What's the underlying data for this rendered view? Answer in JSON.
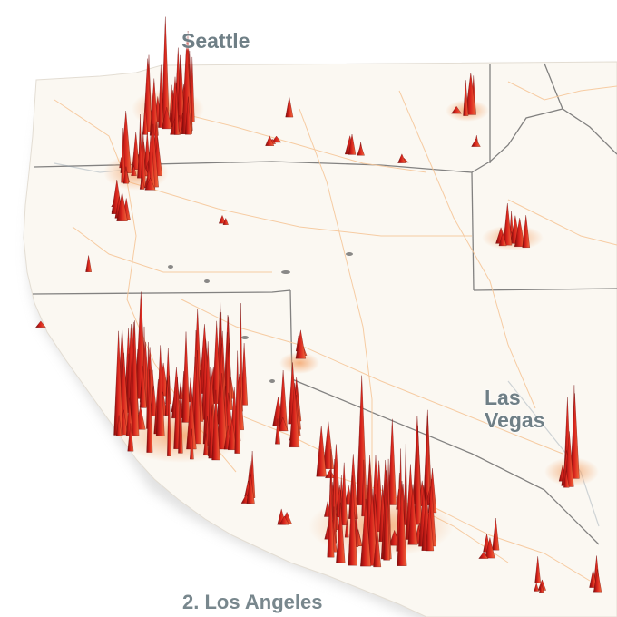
{
  "labels": {
    "seattle": "Seattle",
    "las_vegas_line1": "Las",
    "las_vegas_line2": "Vegas",
    "los_angeles": "2. Los Angeles"
  },
  "colors": {
    "land": "#fbf8f2",
    "spike_dark": "#8a0c0c",
    "spike_red": "#d8231c",
    "spike_light": "#f06a3c",
    "roads": "#f6c79a",
    "borders": "#6d6d6d",
    "label": "#6f7f86"
  }
}
